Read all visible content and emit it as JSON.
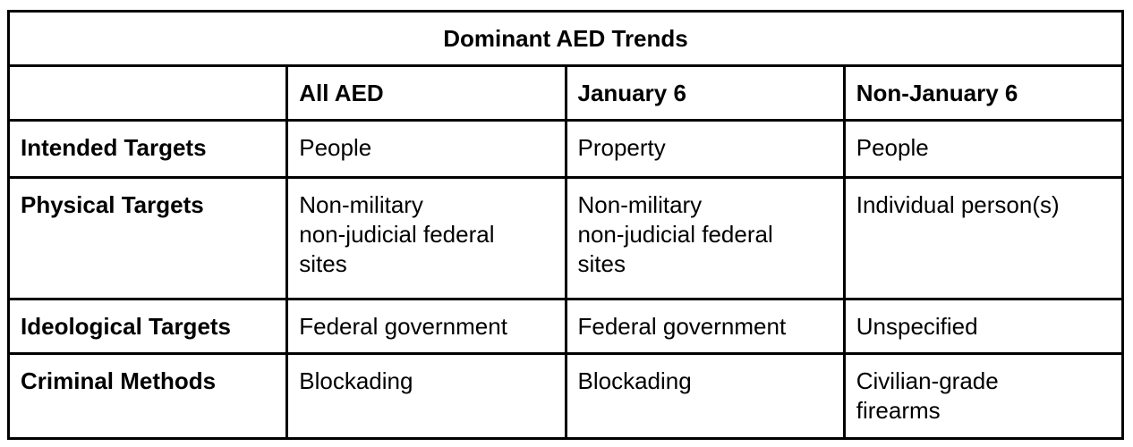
{
  "table": {
    "title": "Dominant AED Trends",
    "columns": [
      "",
      "All AED",
      "January 6",
      "Non-January 6"
    ],
    "rows": [
      {
        "label": "Intended Targets",
        "cells": [
          "People",
          "Property",
          "People"
        ]
      },
      {
        "label": "Physical Targets",
        "cells": [
          "Non-military\nnon-judicial federal\nsites",
          "Non-military\nnon-judicial federal\nsites",
          "Individual person(s)"
        ]
      },
      {
        "label": "Ideological Targets",
        "cells": [
          "Federal government",
          "Federal government",
          "Unspecified"
        ]
      },
      {
        "label": "Criminal Methods",
        "cells": [
          "Blockading",
          "Blockading",
          "Civilian-grade\nfirearms"
        ]
      }
    ]
  },
  "colors": {
    "border": "#000000",
    "text": "#000000",
    "background": "#ffffff"
  }
}
